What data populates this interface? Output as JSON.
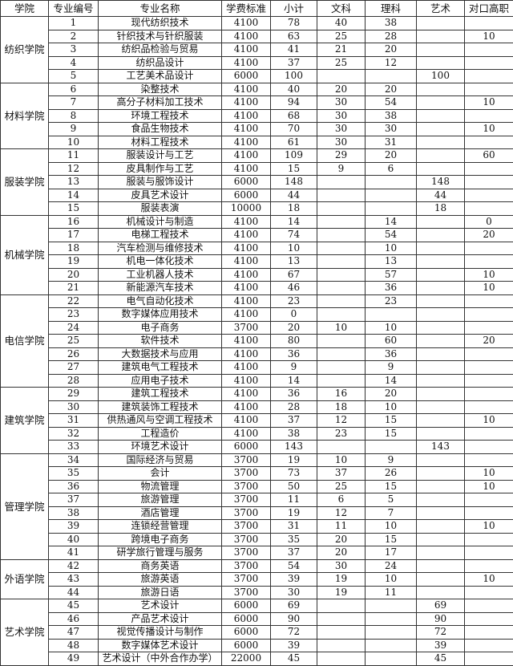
{
  "headers": [
    "学院",
    "专业编号",
    "专业名称",
    "学费标准",
    "小计",
    "文科",
    "理科",
    "艺术",
    "对口高职"
  ],
  "groups": [
    {
      "college": "纺织学院",
      "rows": [
        [
          "1",
          "现代纺织技术",
          "4100",
          "78",
          "40",
          "38",
          "",
          ""
        ],
        [
          "2",
          "针织技术与针织服装",
          "4100",
          "63",
          "25",
          "28",
          "",
          "10"
        ],
        [
          "3",
          "纺织品检验与贸易",
          "4100",
          "41",
          "21",
          "20",
          "",
          ""
        ],
        [
          "4",
          "纺织品设计",
          "4100",
          "37",
          "25",
          "12",
          "",
          ""
        ],
        [
          "5",
          "工艺美术品设计",
          "6000",
          "100",
          "",
          "",
          "100",
          ""
        ]
      ]
    },
    {
      "college": "材料学院",
      "rows": [
        [
          "6",
          "染整技术",
          "4100",
          "40",
          "20",
          "20",
          "",
          ""
        ],
        [
          "7",
          "高分子材料加工技术",
          "4100",
          "94",
          "30",
          "54",
          "",
          "10"
        ],
        [
          "8",
          "环境工程技术",
          "4100",
          "68",
          "30",
          "38",
          "",
          ""
        ],
        [
          "9",
          "食品生物技术",
          "4100",
          "70",
          "30",
          "30",
          "",
          "10"
        ],
        [
          "10",
          "材料工程技术",
          "4100",
          "61",
          "30",
          "31",
          "",
          ""
        ]
      ]
    },
    {
      "college": "服装学院",
      "rows": [
        [
          "11",
          "服装设计与工艺",
          "4100",
          "109",
          "29",
          "20",
          "",
          "60"
        ],
        [
          "12",
          "皮具制作与工艺",
          "4100",
          "15",
          "9",
          "6",
          "",
          ""
        ],
        [
          "13",
          "服装与服饰设计",
          "6000",
          "148",
          "",
          "",
          "148",
          ""
        ],
        [
          "14",
          "皮具艺术设计",
          "6000",
          "44",
          "",
          "",
          "44",
          ""
        ],
        [
          "15",
          "服装表演",
          "10000",
          "18",
          "",
          "",
          "18",
          ""
        ]
      ]
    },
    {
      "college": "机械学院",
      "rows": [
        [
          "16",
          "机械设计与制造",
          "4100",
          "14",
          "",
          "14",
          "",
          "0"
        ],
        [
          "17",
          "电梯工程技术",
          "4100",
          "74",
          "",
          "54",
          "",
          "20"
        ],
        [
          "18",
          "汽车检测与维修技术",
          "4100",
          "10",
          "",
          "10",
          "",
          ""
        ],
        [
          "19",
          "机电一体化技术",
          "4100",
          "13",
          "",
          "13",
          "",
          ""
        ],
        [
          "20",
          "工业机器人技术",
          "4100",
          "67",
          "",
          "57",
          "",
          "10"
        ],
        [
          "21",
          "新能源汽车技术",
          "4100",
          "46",
          "",
          "36",
          "",
          "10"
        ]
      ]
    },
    {
      "college": "电信学院",
      "rows": [
        [
          "22",
          "电气自动化技术",
          "4100",
          "23",
          "",
          "23",
          "",
          ""
        ],
        [
          "23",
          "数字媒体应用技术",
          "4100",
          "0",
          "",
          "",
          "",
          ""
        ],
        [
          "24",
          "电子商务",
          "3700",
          "20",
          "10",
          "10",
          "",
          ""
        ],
        [
          "25",
          "软件技术",
          "4100",
          "80",
          "",
          "60",
          "",
          "20"
        ],
        [
          "26",
          "大数据技术与应用",
          "4100",
          "36",
          "",
          "36",
          "",
          ""
        ],
        [
          "27",
          "建筑电气工程技术",
          "4100",
          "9",
          "",
          "9",
          "",
          ""
        ],
        [
          "28",
          "应用电子技术",
          "4100",
          "14",
          "",
          "14",
          "",
          ""
        ]
      ]
    },
    {
      "college": "建筑学院",
      "rows": [
        [
          "29",
          "建筑工程技术",
          "4100",
          "36",
          "16",
          "20",
          "",
          ""
        ],
        [
          "30",
          "建筑装饰工程技术",
          "4100",
          "28",
          "18",
          "10",
          "",
          ""
        ],
        [
          "31",
          "供热通风与空调工程技术",
          "4100",
          "37",
          "12",
          "15",
          "",
          "10"
        ],
        [
          "32",
          "工程造价",
          "4100",
          "38",
          "23",
          "15",
          "",
          ""
        ],
        [
          "33",
          "环境艺术设计",
          "6000",
          "143",
          "",
          "",
          "143",
          ""
        ]
      ]
    },
    {
      "college": "管理学院",
      "rows": [
        [
          "34",
          "国际经济与贸易",
          "3700",
          "19",
          "10",
          "9",
          "",
          ""
        ],
        [
          "35",
          "会计",
          "3700",
          "73",
          "37",
          "26",
          "",
          "10"
        ],
        [
          "36",
          "物流管理",
          "3700",
          "50",
          "25",
          "15",
          "",
          "10"
        ],
        [
          "37",
          "旅游管理",
          "3700",
          "11",
          "6",
          "5",
          "",
          ""
        ],
        [
          "38",
          "酒店管理",
          "3700",
          "19",
          "12",
          "7",
          "",
          ""
        ],
        [
          "39",
          "连锁经营管理",
          "3700",
          "31",
          "11",
          "10",
          "",
          "10"
        ],
        [
          "40",
          "跨境电子商务",
          "3700",
          "35",
          "20",
          "15",
          "",
          ""
        ],
        [
          "41",
          "研学旅行管理与服务",
          "3700",
          "37",
          "20",
          "17",
          "",
          ""
        ]
      ]
    },
    {
      "college": "外语学院",
      "rows": [
        [
          "42",
          "商务英语",
          "3700",
          "54",
          "30",
          "24",
          "",
          ""
        ],
        [
          "43",
          "旅游英语",
          "3700",
          "39",
          "19",
          "10",
          "",
          "10"
        ],
        [
          "44",
          "旅游日语",
          "3700",
          "30",
          "19",
          "11",
          "",
          ""
        ]
      ]
    },
    {
      "college": "艺术学院",
      "rows": [
        [
          "45",
          "艺术设计",
          "6000",
          "69",
          "",
          "",
          "69",
          ""
        ],
        [
          "46",
          "产品艺术设计",
          "6000",
          "90",
          "",
          "",
          "90",
          ""
        ],
        [
          "47",
          "视觉传播设计与制作",
          "6000",
          "72",
          "",
          "",
          "72",
          ""
        ],
        [
          "48",
          "数字媒体艺术设计",
          "6000",
          "39",
          "",
          "",
          "39",
          ""
        ],
        [
          "49",
          "艺术设计（中外合作办学）",
          "22000",
          "45",
          "",
          "",
          "45",
          ""
        ]
      ]
    }
  ]
}
